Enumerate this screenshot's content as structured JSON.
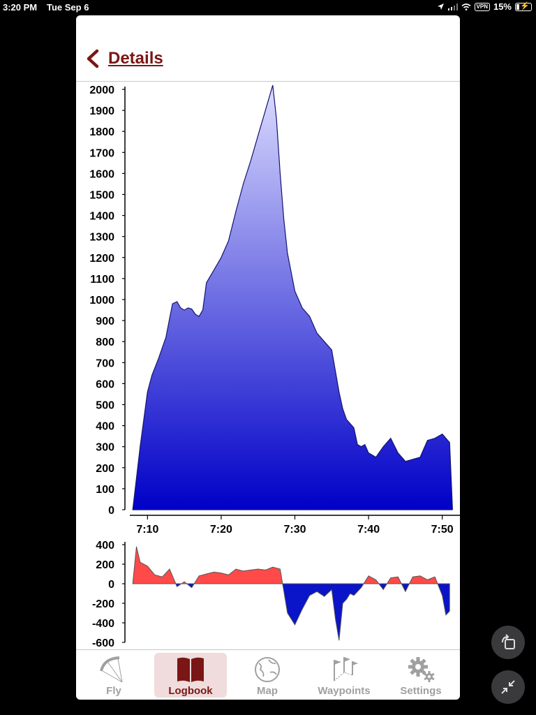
{
  "status_bar": {
    "time": "3:20 PM",
    "date": "Tue Sep 6",
    "vpn": "VPN",
    "battery": "15%"
  },
  "nav": {
    "back_icon": "chevron-left-icon",
    "title": "Details"
  },
  "colors": {
    "accent": "#7a1616",
    "climb": "#ff4a4a",
    "sink": "#0a14c8",
    "area_top": "#dcdcff",
    "area_bottom": "#0000c8"
  },
  "tabs": [
    {
      "label": "Fly",
      "icon": "paraglider-icon",
      "active": false
    },
    {
      "label": "Logbook",
      "icon": "book-icon",
      "active": true
    },
    {
      "label": "Map",
      "icon": "globe-icon",
      "active": false
    },
    {
      "label": "Waypoints",
      "icon": "flags-icon",
      "active": false
    },
    {
      "label": "Settings",
      "icon": "gear-icon",
      "active": false
    }
  ],
  "floating_buttons": [
    {
      "icon": "rotate-window-icon"
    },
    {
      "icon": "minimize-arrows-icon"
    }
  ],
  "chart_data": [
    {
      "type": "area",
      "title": "",
      "xlabel": "",
      "ylabel": "",
      "x_ticks": [
        "7:10",
        "7:20",
        "7:30",
        "7:40",
        "7:50"
      ],
      "y_ticks": [
        0,
        100,
        200,
        300,
        400,
        500,
        600,
        700,
        800,
        900,
        1000,
        1100,
        1200,
        1300,
        1400,
        1500,
        1600,
        1700,
        1800,
        1900,
        2000
      ],
      "ylim": [
        0,
        2000
      ],
      "xlim_minutes": [
        7.6,
        52.4
      ],
      "grid": false,
      "series": [
        {
          "x": [
            "7:08.0",
            "7:09.0",
            "7:10.0",
            "7:10.6",
            "7:11.5",
            "7:12.5",
            "7:13.0",
            "7:13.4",
            "7:14.0",
            "7:14.5",
            "7:15.0",
            "7:15.5",
            "7:16.0",
            "7:16.5",
            "7:17.0",
            "7:17.5",
            "7:18.0",
            "7:19.0",
            "7:20.0",
            "7:21.0",
            "7:22.0",
            "7:23.0",
            "7:24.0",
            "7:25.0",
            "7:26.0",
            "7:27.0",
            "7:27.5",
            "7:28.0",
            "7:28.5",
            "7:29.0",
            "7:30.0",
            "7:31.0",
            "7:32.0",
            "7:33.0",
            "7:34.0",
            "7:35.0",
            "7:36.0",
            "7:36.5",
            "7:37.0",
            "7:37.5",
            "7:38.0",
            "7:38.5",
            "7:39.0",
            "7:39.5",
            "7:40.0",
            "7:41.0",
            "7:42.0",
            "7:43.0",
            "7:44.0",
            "7:45.0",
            "7:46.0",
            "7:47.0",
            "7:48.0",
            "7:49.0",
            "7:50.0",
            "7:51.0",
            "7:51.4"
          ],
          "y": [
            0,
            300,
            560,
            640,
            720,
            820,
            910,
            980,
            990,
            960,
            950,
            960,
            955,
            930,
            920,
            950,
            1080,
            1140,
            1200,
            1280,
            1420,
            1550,
            1660,
            1780,
            1900,
            2020,
            1860,
            1600,
            1380,
            1220,
            1040,
            960,
            920,
            840,
            800,
            760,
            560,
            480,
            430,
            410,
            390,
            310,
            300,
            310,
            270,
            250,
            300,
            340,
            270,
            230,
            240,
            250,
            330,
            340,
            360,
            320,
            0
          ]
        }
      ]
    },
    {
      "type": "area",
      "title": "",
      "xlabel": "",
      "ylabel": "",
      "y_ticks": [
        400,
        200,
        0,
        -200,
        -400,
        -600
      ],
      "ylim": [
        -600,
        400
      ],
      "grid": false,
      "series": [
        {
          "x": [
            "7:08.0",
            "7:08.5",
            "7:09.0",
            "7:10.0",
            "7:11.0",
            "7:12.0",
            "7:13.0",
            "7:14.0",
            "7:15.0",
            "7:16.0",
            "7:17.0",
            "7:18.0",
            "7:19.0",
            "7:20.0",
            "7:21.0",
            "7:22.0",
            "7:23.0",
            "7:24.0",
            "7:25.0",
            "7:26.0",
            "7:27.0",
            "7:28.0",
            "7:29.0",
            "7:30.0",
            "7:31.0",
            "7:32.0",
            "7:33.0",
            "7:34.0",
            "7:35.0",
            "7:35.5",
            "7:36.0",
            "7:36.5",
            "7:37.0",
            "7:37.5",
            "7:38.0",
            "7:39.0",
            "7:40.0",
            "7:41.0",
            "7:42.0",
            "7:43.0",
            "7:44.0",
            "7:45.0",
            "7:46.0",
            "7:47.0",
            "7:48.0",
            "7:49.0",
            "7:50.0",
            "7:50.5",
            "7:51.0"
          ],
          "y": [
            0,
            380,
            220,
            180,
            90,
            70,
            150,
            -30,
            20,
            -40,
            80,
            100,
            120,
            110,
            90,
            150,
            130,
            140,
            150,
            140,
            170,
            150,
            -300,
            -420,
            -260,
            -120,
            -80,
            -130,
            -60,
            -360,
            -580,
            -200,
            -160,
            -100,
            -120,
            -40,
            80,
            40,
            -60,
            60,
            70,
            -80,
            70,
            80,
            40,
            70,
            -120,
            -320,
            -280
          ]
        }
      ]
    }
  ]
}
